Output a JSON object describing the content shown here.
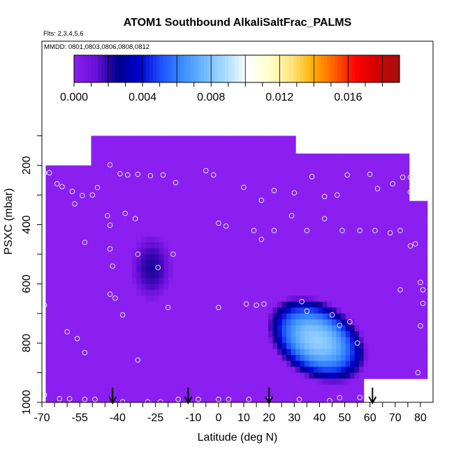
{
  "figure": {
    "title": "ATOM1 Southbound AlkaliSaltFrac_PALMS",
    "flights_label": "Flts: 2,3,4,5,6",
    "dates_label": "MMDD: 0801,0803,0806,0808,0812"
  },
  "chart_data": {
    "type": "heatmap",
    "title": "ATOM1 Southbound AlkaliSaltFrac_PALMS",
    "xlabel": "Latitude (deg N)",
    "ylabel": "PSXC (mbar)",
    "xlim": [
      -70,
      85
    ],
    "ylim": [
      1000,
      0
    ],
    "x_tick_labels": [
      "-70",
      "-55",
      "-40",
      "-25",
      "-10",
      "0",
      "10",
      "20",
      "30",
      "40",
      "50",
      "60",
      "70",
      "80"
    ],
    "y_tick_labels": [
      "200",
      "400",
      "600",
      "800",
      "1000"
    ],
    "colorbar": {
      "min": 0,
      "max": 0.019,
      "tick_labels": [
        "0.000",
        "0.004",
        "0.008",
        "0.012",
        "0.016"
      ],
      "colors": [
        "#8a1ff0",
        "#6a10d8",
        "#00008b",
        "#0000cd",
        "#1e50ff",
        "#3b8cff",
        "#6fb8ff",
        "#a8dcff",
        "#ffffff",
        "#ffffcc",
        "#ffe680",
        "#ffb000",
        "#ff6000",
        "#ff0000",
        "#d00000",
        "#a01010"
      ]
    },
    "background_value": 0.0,
    "missing_value_regions": [
      {
        "lat_min": -70,
        "lat_max": -68,
        "p_min": 0,
        "p_max": 210
      },
      {
        "lat_min": -68,
        "lat_max": -50,
        "p_min": 0,
        "p_max": 210
      },
      {
        "lat_min": 31,
        "lat_max": 85,
        "p_min": 0,
        "p_max": 160
      },
      {
        "lat_min": 76,
        "lat_max": 85,
        "p_min": 0,
        "p_max": 320
      },
      {
        "lat_min": 57,
        "lat_max": 85,
        "p_min": 920,
        "p_max": 1000
      }
    ],
    "enhanced_regions": [
      {
        "name": "southern-hemisphere-mid-troposphere",
        "lat_range": [
          -35,
          -18
        ],
        "p_range": [
          430,
          660
        ],
        "peak_value": 0.0022
      },
      {
        "name": "northern-tropics-lower-troposphere",
        "lat_range": [
          20,
          58
        ],
        "p_range": [
          640,
          940
        ],
        "peak_value": 0.0084
      }
    ],
    "sample_markers": [
      [
        -69,
        225
      ],
      [
        -67,
        225
      ],
      [
        -64,
        262
      ],
      [
        -62,
        272
      ],
      [
        -58,
        288
      ],
      [
        -57,
        330
      ],
      [
        -54,
        302
      ],
      [
        -50,
        300
      ],
      [
        -48,
        275
      ],
      [
        -43,
        198
      ],
      [
        -39,
        228
      ],
      [
        -36,
        232
      ],
      [
        -32,
        230
      ],
      [
        -27,
        235
      ],
      [
        -22,
        232
      ],
      [
        -17,
        258
      ],
      [
        -5,
        218
      ],
      [
        -2,
        232
      ],
      [
        -44,
        370
      ],
      [
        -37,
        362
      ],
      [
        -43,
        402
      ],
      [
        -33,
        380
      ],
      [
        -53,
        460
      ],
      [
        -43,
        482
      ],
      [
        -42,
        540
      ],
      [
        -32,
        500
      ],
      [
        -18,
        500
      ],
      [
        -24,
        545
      ],
      [
        -43,
        635
      ],
      [
        -41,
        648
      ],
      [
        -38,
        705
      ],
      [
        -20,
        680
      ],
      [
        -69,
        672
      ],
      [
        -60,
        762
      ],
      [
        -56,
        785
      ],
      [
        -53,
        832
      ],
      [
        -32,
        857
      ],
      [
        0,
        395
      ],
      [
        3,
        405
      ],
      [
        0,
        680
      ],
      [
        11,
        668
      ],
      [
        15,
        672
      ],
      [
        18,
        668
      ],
      [
        10,
        274
      ],
      [
        17,
        318
      ],
      [
        22,
        285
      ],
      [
        30,
        293
      ],
      [
        37,
        238
      ],
      [
        51,
        232
      ],
      [
        60,
        230
      ],
      [
        14,
        420
      ],
      [
        17,
        450
      ],
      [
        22,
        420
      ],
      [
        29,
        370
      ],
      [
        35,
        420
      ],
      [
        42,
        380
      ],
      [
        49,
        420
      ],
      [
        56,
        420
      ],
      [
        62,
        420
      ],
      [
        72,
        420
      ],
      [
        78,
        465
      ],
      [
        33,
        660
      ],
      [
        35,
        692
      ],
      [
        45,
        705
      ],
      [
        48,
        740
      ],
      [
        52,
        728
      ],
      [
        68,
        428
      ],
      [
        72,
        620
      ],
      [
        76,
        472
      ],
      [
        80,
        595
      ],
      [
        81,
        620
      ],
      [
        81,
        666
      ],
      [
        79,
        900
      ],
      [
        80,
        742
      ],
      [
        55,
        800
      ],
      [
        63,
        278
      ],
      [
        69,
        262
      ],
      [
        73,
        240
      ],
      [
        76,
        240
      ],
      [
        76,
        290
      ],
      [
        47,
        300
      ],
      [
        42,
        305
      ],
      [
        20,
        990
      ],
      [
        12,
        990
      ],
      [
        4,
        990
      ],
      [
        0,
        990
      ],
      [
        -8,
        990
      ],
      [
        -16,
        990
      ],
      [
        -23,
        998
      ],
      [
        -28,
        998
      ],
      [
        -38,
        998
      ],
      [
        -49,
        990
      ],
      [
        -53,
        990
      ],
      [
        -59,
        988
      ],
      [
        -63,
        988
      ],
      [
        -69,
        975
      ],
      [
        32,
        990
      ],
      [
        44,
        994
      ],
      [
        56,
        984
      ],
      [
        48,
        985
      ]
    ],
    "arrow_markers_lat": [
      -42,
      -12,
      20,
      61
    ],
    "grid": false
  }
}
